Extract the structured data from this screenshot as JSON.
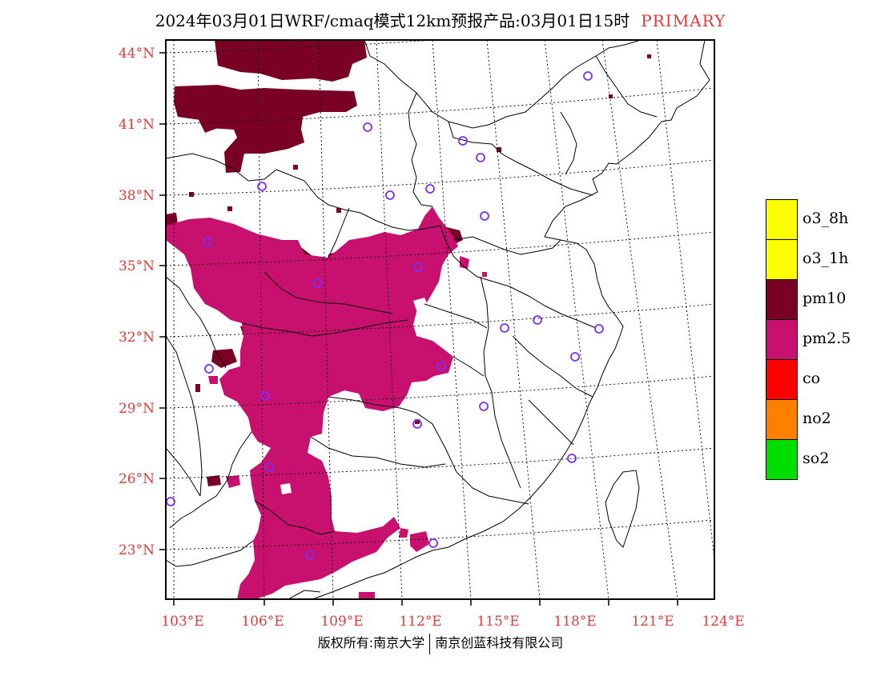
{
  "title": {
    "main": "2024年03月01日WRF/cmaq模式12km预报产品:03月01日15时",
    "tag": "PRIMARY",
    "tag_color": "#e03a3a"
  },
  "axes": {
    "lat_labels": [
      "44°N",
      "41°N",
      "38°N",
      "35°N",
      "32°N",
      "29°N",
      "26°N",
      "23°N"
    ],
    "lon_labels": [
      "103°E",
      "106°E",
      "109°E",
      "112°E",
      "115°E",
      "118°E",
      "121°E",
      "124°E"
    ],
    "label_color": "#e03a3a"
  },
  "legend": [
    {
      "label": "o3_8h",
      "color": "#ffff00"
    },
    {
      "label": "o3_1h",
      "color": "#ffff00"
    },
    {
      "label": "pm10",
      "color": "#7a0026"
    },
    {
      "label": "pm2.5",
      "color": "#c8106e"
    },
    {
      "label": "co",
      "color": "#ff0000"
    },
    {
      "label": "no2",
      "color": "#ff7f00"
    },
    {
      "label": "so2",
      "color": "#00dd00"
    }
  ],
  "footer": {
    "left": "版权所有:南京大学",
    "right": "南京创蓝科技有限公司"
  },
  "stations": {
    "marker": "circle-station-icon",
    "color": "#7b2ff7"
  }
}
